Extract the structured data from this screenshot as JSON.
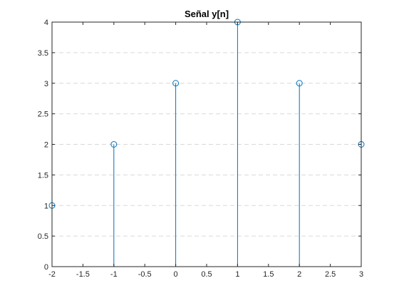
{
  "chart_data": {
    "type": "stem",
    "title": "Señal y[n]",
    "xlabel": "",
    "ylabel": "",
    "x": [
      -2,
      -1,
      0,
      1,
      2,
      3
    ],
    "values": [
      1,
      2,
      3,
      4,
      3,
      2
    ],
    "xlim": [
      -2,
      3
    ],
    "ylim": [
      0,
      4
    ],
    "xticks": [
      -2,
      -1.5,
      -1,
      -0.5,
      0,
      0.5,
      1,
      1.5,
      2,
      2.5,
      3
    ],
    "xtick_labels": [
      "-2",
      "-1.5",
      "-1",
      "-0.5",
      "0",
      "0.5",
      "1",
      "1.5",
      "2",
      "2.5",
      "3"
    ],
    "yticks": [
      0,
      0.5,
      1,
      1.5,
      2,
      2.5,
      3,
      3.5,
      4
    ],
    "ytick_labels": [
      "0",
      "0.5",
      "1",
      "1.5",
      "2",
      "2.5",
      "3",
      "3.5",
      "4"
    ],
    "grid": "horizontal-dashed",
    "marker": "open-circle",
    "series_color": "#0072BD",
    "grid_color": "#d9d9d9",
    "axis_color": "#262626"
  }
}
